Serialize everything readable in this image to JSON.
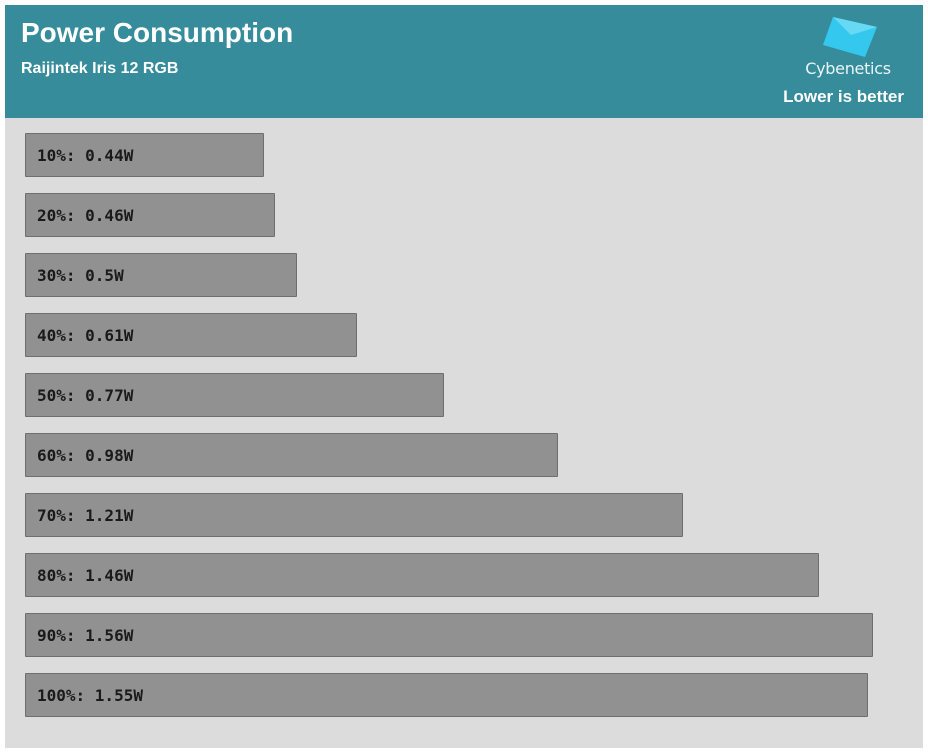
{
  "header": {
    "title": "Power Consumption",
    "subtitle": "Raijintek Iris 12 RGB",
    "brand": "Cybenetics",
    "note": "Lower is better"
  },
  "colors": {
    "header_bg": "#368c9b",
    "chart_bg": "#dcdcdc",
    "bar_fill": "#919191",
    "logo": "#35c8ee"
  },
  "chart_data": {
    "type": "bar",
    "orientation": "horizontal",
    "title": "Power Consumption",
    "subtitle": "Raijintek Iris 12 RGB",
    "categories": [
      "10%",
      "20%",
      "30%",
      "40%",
      "50%",
      "60%",
      "70%",
      "80%",
      "90%",
      "100%"
    ],
    "values": [
      0.44,
      0.46,
      0.5,
      0.61,
      0.77,
      0.98,
      1.21,
      1.46,
      1.56,
      1.55
    ],
    "labels": [
      "10%: 0.44W",
      "20%: 0.46W",
      "30%: 0.5W",
      "40%: 0.61W",
      "50%: 0.77W",
      "60%: 0.98W",
      "70%: 1.21W",
      "80%: 1.46W",
      "90%: 1.56W",
      "100%: 1.55W"
    ],
    "unit": "W",
    "xlim": [
      0,
      1.56
    ],
    "grid": false,
    "legend": "none"
  }
}
